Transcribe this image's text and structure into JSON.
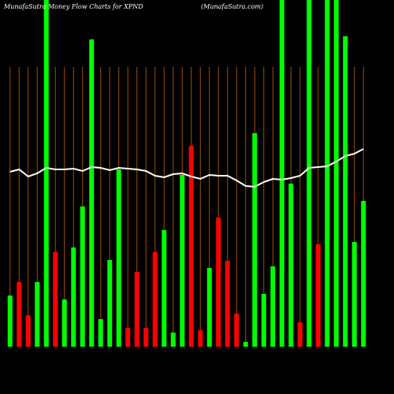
{
  "chart_data": {
    "type": "bar",
    "title": "MunafaSutra  Money Flow  Charts for XPND",
    "subtitle": "(MunafaSutra.com)",
    "categories": [
      null,
      null,
      null,
      null,
      null,
      null,
      null,
      null,
      null,
      null,
      null,
      null,
      null,
      null,
      null,
      null,
      null,
      null,
      null,
      null,
      null,
      null,
      null,
      null,
      null,
      null,
      null,
      null,
      null,
      null,
      null,
      null,
      null,
      null,
      null,
      null,
      null,
      null,
      null,
      null
    ],
    "values": [
      65,
      82,
      40,
      82,
      460,
      120,
      60,
      126,
      178,
      390,
      35,
      110,
      225,
      24,
      95,
      24,
      120,
      148,
      18,
      218,
      255,
      21,
      100,
      164,
      109,
      42,
      6,
      271,
      67,
      102,
      460,
      207,
      31,
      460,
      130,
      460,
      460,
      394,
      133,
      185
    ],
    "colors": [
      "#00ff00",
      "#ff0000",
      "#ff0000",
      "#00ff00",
      "#00ff00",
      "#ff0000",
      "#00ff00",
      "#00ff00",
      "#00ff00",
      "#00ff00",
      "#00ff00",
      "#00ff00",
      "#00ff00",
      "#ff0000",
      "#ff0000",
      "#ff0000",
      "#ff0000",
      "#00ff00",
      "#00ff00",
      "#00ff00",
      "#ff0000",
      "#ff0000",
      "#00ff00",
      "#ff0000",
      "#ff0000",
      "#ff0000",
      "#00ff00",
      "#00ff00",
      "#00ff00",
      "#00ff00",
      "#00ff00",
      "#00ff00",
      "#ff0000",
      "#00ff00",
      "#ff0000",
      "#00ff00",
      "#00ff00",
      "#00ff00",
      "#00ff00",
      "#00ff00"
    ],
    "line": {
      "color": "#ffffff",
      "values": [
        222,
        225,
        216,
        220,
        227,
        225,
        225,
        226,
        223,
        228,
        227,
        224,
        227,
        226,
        225,
        223,
        217,
        215,
        219,
        220,
        216,
        213,
        218,
        217,
        217,
        211,
        204,
        203,
        209,
        213,
        212,
        214,
        217,
        227,
        228,
        229,
        235,
        242,
        245,
        251
      ]
    },
    "ylim": [
      0,
      440
    ],
    "grid": true,
    "grid_color": "#a05000"
  }
}
